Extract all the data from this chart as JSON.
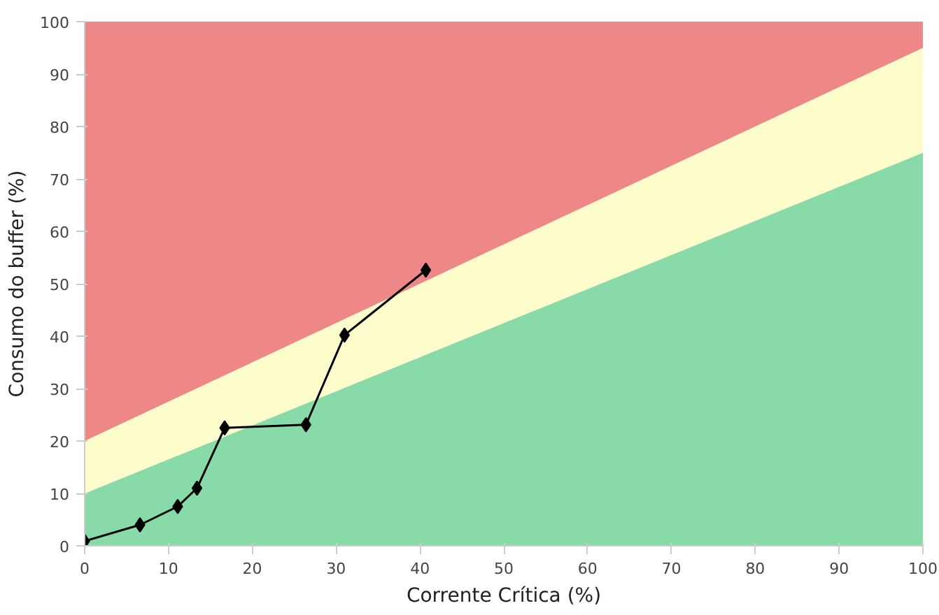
{
  "chart_data": {
    "type": "line",
    "xlabel": "Corrente Crítica (%)",
    "ylabel": "Consumo do buffer (%)",
    "xlim": [
      0,
      100
    ],
    "ylim": [
      0,
      100
    ],
    "xticks": [
      0,
      10,
      20,
      30,
      40,
      50,
      60,
      70,
      80,
      90,
      100
    ],
    "yticks": [
      0,
      10,
      20,
      30,
      40,
      50,
      60,
      70,
      80,
      90,
      100
    ],
    "stacked": true,
    "grid": false,
    "line_style": "solid",
    "series": [
      {
        "type": "area",
        "color": "#88dba8",
        "x": [
          0,
          100
        ],
        "values": [
          10,
          75
        ]
      },
      {
        "type": "area",
        "color": "#fdfdcb",
        "x": [
          0,
          100
        ],
        "values": [
          10,
          20
        ]
      },
      {
        "type": "area",
        "color": "#ee8888",
        "x": [
          0,
          100
        ],
        "values": [
          80,
          5
        ]
      },
      {
        "color": "#000000",
        "marker": "diamond",
        "x": [
          0,
          6.6,
          11.1,
          13.4,
          16.7,
          26.4,
          31.0,
          40.7
        ],
        "values": [
          0.9,
          4.0,
          7.5,
          11,
          22.5,
          23.1,
          40.2,
          52.6
        ]
      }
    ]
  }
}
